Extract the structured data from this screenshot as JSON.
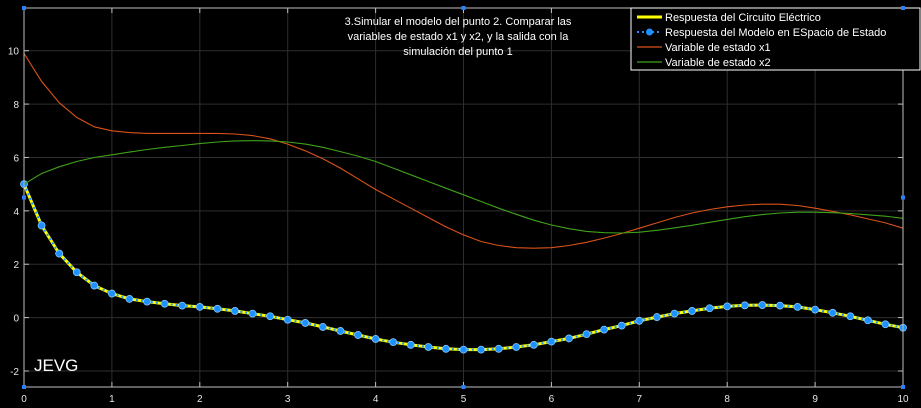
{
  "chart_data": {
    "type": "line",
    "title_lines": [
      "3.Simular el modelo del punto 2. Comparar las",
      "variables de estado x1 y x2, y la salida con la",
      "simulación del punto 1"
    ],
    "watermark": "JEVG",
    "xlim": [
      0,
      10
    ],
    "ylim": [
      -2.6,
      11.6
    ],
    "x_ticks": [
      0,
      1,
      2,
      3,
      4,
      5,
      6,
      7,
      8,
      9,
      10
    ],
    "y_ticks": [
      -2,
      0,
      2,
      4,
      6,
      8,
      10
    ],
    "grid": true,
    "legend_position": "top-right",
    "colors": {
      "background": "#000000",
      "grid": "#2e2e2e",
      "axis": "#bfbfbf",
      "tick_label": "#e6e6e6",
      "legend_border": "#ffffff",
      "title_text": "#ffffff"
    },
    "series": [
      {
        "name": "Respuesta del Circuito Eléctrico",
        "color": "#ffff00",
        "style": "thick-solid",
        "x": [
          0,
          0.2,
          0.4,
          0.6,
          0.8,
          1.0,
          1.2,
          1.4,
          1.6,
          1.8,
          2.0,
          2.2,
          2.4,
          2.6,
          2.8,
          3.0,
          3.2,
          3.4,
          3.6,
          3.8,
          4.0,
          4.2,
          4.4,
          4.6,
          4.8,
          5.0,
          5.2,
          5.4,
          5.6,
          5.8,
          6.0,
          6.2,
          6.4,
          6.6,
          6.8,
          7.0,
          7.2,
          7.4,
          7.6,
          7.8,
          8.0,
          8.2,
          8.4,
          8.6,
          8.8,
          9.0,
          9.2,
          9.4,
          9.6,
          9.8,
          10.0
        ],
        "y": [
          5.0,
          3.45,
          2.4,
          1.7,
          1.2,
          0.9,
          0.7,
          0.6,
          0.52,
          0.45,
          0.4,
          0.33,
          0.25,
          0.15,
          0.05,
          -0.08,
          -0.2,
          -0.35,
          -0.5,
          -0.65,
          -0.8,
          -0.92,
          -1.02,
          -1.1,
          -1.17,
          -1.2,
          -1.2,
          -1.17,
          -1.1,
          -1.02,
          -0.9,
          -0.78,
          -0.62,
          -0.45,
          -0.3,
          -0.12,
          0.02,
          0.15,
          0.25,
          0.35,
          0.42,
          0.46,
          0.47,
          0.45,
          0.4,
          0.3,
          0.18,
          0.05,
          -0.1,
          -0.25,
          -0.38
        ]
      },
      {
        "name": "Respuesta del Modelo en ESpacio de Estado",
        "color": "#1e90ff",
        "style": "dotted-markers",
        "x": [
          0,
          0.2,
          0.4,
          0.6,
          0.8,
          1.0,
          1.2,
          1.4,
          1.6,
          1.8,
          2.0,
          2.2,
          2.4,
          2.6,
          2.8,
          3.0,
          3.2,
          3.4,
          3.6,
          3.8,
          4.0,
          4.2,
          4.4,
          4.6,
          4.8,
          5.0,
          5.2,
          5.4,
          5.6,
          5.8,
          6.0,
          6.2,
          6.4,
          6.6,
          6.8,
          7.0,
          7.2,
          7.4,
          7.6,
          7.8,
          8.0,
          8.2,
          8.4,
          8.6,
          8.8,
          9.0,
          9.2,
          9.4,
          9.6,
          9.8,
          10.0
        ],
        "y": [
          5.0,
          3.45,
          2.4,
          1.7,
          1.2,
          0.9,
          0.7,
          0.6,
          0.52,
          0.45,
          0.4,
          0.33,
          0.25,
          0.15,
          0.05,
          -0.08,
          -0.2,
          -0.35,
          -0.5,
          -0.65,
          -0.8,
          -0.92,
          -1.02,
          -1.1,
          -1.17,
          -1.2,
          -1.2,
          -1.17,
          -1.1,
          -1.02,
          -0.9,
          -0.78,
          -0.62,
          -0.45,
          -0.3,
          -0.12,
          0.02,
          0.15,
          0.25,
          0.35,
          0.42,
          0.46,
          0.47,
          0.45,
          0.4,
          0.3,
          0.18,
          0.05,
          -0.1,
          -0.25,
          -0.38
        ]
      },
      {
        "name": "Variable de estado x1",
        "color": "#d95319",
        "style": "thin-solid",
        "x": [
          0,
          0.2,
          0.4,
          0.6,
          0.8,
          1.0,
          1.2,
          1.4,
          1.6,
          1.8,
          2.0,
          2.2,
          2.4,
          2.6,
          2.8,
          3.0,
          3.2,
          3.4,
          3.6,
          3.8,
          4.0,
          4.2,
          4.4,
          4.6,
          4.8,
          5.0,
          5.2,
          5.4,
          5.6,
          5.8,
          6.0,
          6.2,
          6.4,
          6.6,
          6.8,
          7.0,
          7.2,
          7.4,
          7.6,
          7.8,
          8.0,
          8.2,
          8.4,
          8.6,
          8.8,
          9.0,
          9.2,
          9.4,
          9.6,
          9.8,
          10.0
        ],
        "y": [
          9.9,
          8.85,
          8.05,
          7.5,
          7.15,
          7.0,
          6.93,
          6.9,
          6.9,
          6.9,
          6.9,
          6.9,
          6.88,
          6.82,
          6.7,
          6.5,
          6.25,
          5.95,
          5.6,
          5.2,
          4.8,
          4.45,
          4.1,
          3.75,
          3.4,
          3.1,
          2.85,
          2.7,
          2.62,
          2.6,
          2.62,
          2.7,
          2.82,
          2.98,
          3.15,
          3.35,
          3.55,
          3.75,
          3.92,
          4.05,
          4.15,
          4.22,
          4.25,
          4.25,
          4.2,
          4.1,
          3.98,
          3.85,
          3.7,
          3.55,
          3.35
        ]
      },
      {
        "name": "Variable de estado x2",
        "color": "#3fa21a",
        "style": "thin-solid",
        "x": [
          0,
          0.2,
          0.4,
          0.6,
          0.8,
          1.0,
          1.2,
          1.4,
          1.6,
          1.8,
          2.0,
          2.2,
          2.4,
          2.6,
          2.8,
          3.0,
          3.2,
          3.4,
          3.6,
          3.8,
          4.0,
          4.2,
          4.4,
          4.6,
          4.8,
          5.0,
          5.2,
          5.4,
          5.6,
          5.8,
          6.0,
          6.2,
          6.4,
          6.6,
          6.8,
          7.0,
          7.2,
          7.4,
          7.6,
          7.8,
          8.0,
          8.2,
          8.4,
          8.6,
          8.8,
          9.0,
          9.2,
          9.4,
          9.6,
          9.8,
          10.0
        ],
        "y": [
          5.0,
          5.4,
          5.65,
          5.85,
          6.0,
          6.1,
          6.2,
          6.3,
          6.38,
          6.45,
          6.52,
          6.58,
          6.62,
          6.63,
          6.62,
          6.58,
          6.5,
          6.38,
          6.22,
          6.05,
          5.85,
          5.6,
          5.35,
          5.1,
          4.85,
          4.6,
          4.35,
          4.1,
          3.87,
          3.65,
          3.47,
          3.33,
          3.23,
          3.18,
          3.17,
          3.2,
          3.27,
          3.36,
          3.46,
          3.57,
          3.68,
          3.78,
          3.86,
          3.92,
          3.95,
          3.95,
          3.93,
          3.9,
          3.85,
          3.8,
          3.72
        ]
      }
    ]
  }
}
